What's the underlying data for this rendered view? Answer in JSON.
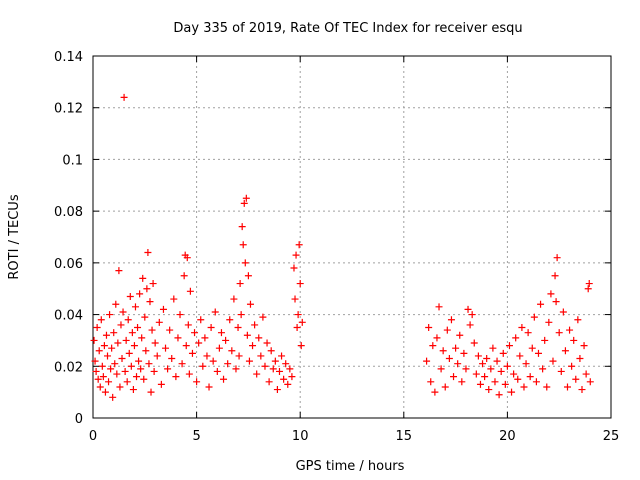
{
  "chart_data": {
    "type": "scatter",
    "title": "Day 335 of 2019, Rate Of TEC Index for receiver esqu",
    "xlabel": "GPS time / hours",
    "ylabel": "ROTI / TECUs",
    "xlim": [
      0,
      25
    ],
    "ylim": [
      0,
      0.14
    ],
    "xticks": [
      0,
      5,
      10,
      15,
      20,
      25
    ],
    "xtick_labels": [
      "0",
      "5",
      "10",
      "15",
      "20",
      "25"
    ],
    "yticks": [
      0,
      0.02,
      0.04,
      0.06,
      0.08,
      0.1,
      0.12,
      0.14
    ],
    "ytick_labels": [
      "0",
      "0.02",
      "0.04",
      "0.06",
      "0.08",
      "0.1",
      "0.12",
      "0.14"
    ],
    "grid": true,
    "marker": "+",
    "color": "#ff0000",
    "series": [
      {
        "name": "ROTI",
        "points": [
          [
            0.05,
            0.03
          ],
          [
            0.1,
            0.022
          ],
          [
            0.15,
            0.018
          ],
          [
            0.2,
            0.035
          ],
          [
            0.25,
            0.015
          ],
          [
            0.3,
            0.026
          ],
          [
            0.35,
            0.012
          ],
          [
            0.4,
            0.038
          ],
          [
            0.45,
            0.02
          ],
          [
            0.5,
            0.016
          ],
          [
            0.55,
            0.028
          ],
          [
            0.6,
            0.01
          ],
          [
            0.65,
            0.032
          ],
          [
            0.7,
            0.024
          ],
          [
            0.75,
            0.014
          ],
          [
            0.8,
            0.04
          ],
          [
            0.85,
            0.019
          ],
          [
            0.9,
            0.027
          ],
          [
            0.95,
            0.008
          ],
          [
            1.0,
            0.033
          ],
          [
            1.05,
            0.021
          ],
          [
            1.1,
            0.044
          ],
          [
            1.15,
            0.017
          ],
          [
            1.2,
            0.029
          ],
          [
            1.25,
            0.057
          ],
          [
            1.3,
            0.012
          ],
          [
            1.35,
            0.036
          ],
          [
            1.4,
            0.023
          ],
          [
            1.45,
            0.041
          ],
          [
            1.5,
            0.124
          ],
          [
            1.55,
            0.018
          ],
          [
            1.6,
            0.03
          ],
          [
            1.65,
            0.014
          ],
          [
            1.7,
            0.038
          ],
          [
            1.75,
            0.025
          ],
          [
            1.8,
            0.047
          ],
          [
            1.85,
            0.02
          ],
          [
            1.9,
            0.033
          ],
          [
            1.95,
            0.011
          ],
          [
            2.0,
            0.028
          ],
          [
            2.05,
            0.043
          ],
          [
            2.1,
            0.016
          ],
          [
            2.15,
            0.035
          ],
          [
            2.2,
            0.022
          ],
          [
            2.25,
            0.048
          ],
          [
            2.3,
            0.019
          ],
          [
            2.35,
            0.031
          ],
          [
            2.4,
            0.054
          ],
          [
            2.45,
            0.015
          ],
          [
            2.5,
            0.039
          ],
          [
            2.55,
            0.026
          ],
          [
            2.6,
            0.05
          ],
          [
            2.65,
            0.064
          ],
          [
            2.7,
            0.021
          ],
          [
            2.75,
            0.045
          ],
          [
            2.8,
            0.01
          ],
          [
            2.85,
            0.034
          ],
          [
            2.9,
            0.052
          ],
          [
            2.95,
            0.018
          ],
          [
            3.0,
            0.029
          ],
          [
            3.1,
            0.024
          ],
          [
            3.2,
            0.037
          ],
          [
            3.3,
            0.013
          ],
          [
            3.4,
            0.042
          ],
          [
            3.5,
            0.027
          ],
          [
            3.6,
            0.019
          ],
          [
            3.7,
            0.034
          ],
          [
            3.8,
            0.023
          ],
          [
            3.9,
            0.046
          ],
          [
            4.0,
            0.016
          ],
          [
            4.1,
            0.031
          ],
          [
            4.2,
            0.04
          ],
          [
            4.3,
            0.021
          ],
          [
            4.4,
            0.055
          ],
          [
            4.45,
            0.063
          ],
          [
            4.5,
            0.028
          ],
          [
            4.55,
            0.062
          ],
          [
            4.6,
            0.036
          ],
          [
            4.65,
            0.017
          ],
          [
            4.7,
            0.049
          ],
          [
            4.8,
            0.025
          ],
          [
            4.9,
            0.033
          ],
          [
            5.0,
            0.014
          ],
          [
            5.1,
            0.029
          ],
          [
            5.2,
            0.038
          ],
          [
            5.3,
            0.02
          ],
          [
            5.4,
            0.031
          ],
          [
            5.5,
            0.024
          ],
          [
            5.6,
            0.012
          ],
          [
            5.7,
            0.035
          ],
          [
            5.8,
            0.022
          ],
          [
            5.9,
            0.041
          ],
          [
            6.0,
            0.018
          ],
          [
            6.1,
            0.027
          ],
          [
            6.2,
            0.033
          ],
          [
            6.3,
            0.015
          ],
          [
            6.4,
            0.03
          ],
          [
            6.5,
            0.021
          ],
          [
            6.6,
            0.038
          ],
          [
            6.7,
            0.026
          ],
          [
            6.8,
            0.046
          ],
          [
            6.9,
            0.019
          ],
          [
            7.0,
            0.035
          ],
          [
            7.05,
            0.024
          ],
          [
            7.1,
            0.052
          ],
          [
            7.15,
            0.04
          ],
          [
            7.2,
            0.074
          ],
          [
            7.25,
            0.067
          ],
          [
            7.3,
            0.083
          ],
          [
            7.35,
            0.06
          ],
          [
            7.4,
            0.085
          ],
          [
            7.45,
            0.032
          ],
          [
            7.5,
            0.055
          ],
          [
            7.55,
            0.022
          ],
          [
            7.6,
            0.044
          ],
          [
            7.7,
            0.028
          ],
          [
            7.8,
            0.036
          ],
          [
            7.9,
            0.017
          ],
          [
            8.0,
            0.031
          ],
          [
            8.1,
            0.024
          ],
          [
            8.2,
            0.039
          ],
          [
            8.3,
            0.02
          ],
          [
            8.4,
            0.029
          ],
          [
            8.5,
            0.014
          ],
          [
            8.6,
            0.026
          ],
          [
            8.7,
            0.019
          ],
          [
            8.8,
            0.022
          ],
          [
            8.9,
            0.011
          ],
          [
            9.0,
            0.018
          ],
          [
            9.1,
            0.024
          ],
          [
            9.2,
            0.015
          ],
          [
            9.3,
            0.021
          ],
          [
            9.4,
            0.013
          ],
          [
            9.5,
            0.019
          ],
          [
            9.6,
            0.016
          ],
          [
            9.7,
            0.058
          ],
          [
            9.75,
            0.046
          ],
          [
            9.8,
            0.063
          ],
          [
            9.85,
            0.035
          ],
          [
            9.9,
            0.04
          ],
          [
            9.95,
            0.067
          ],
          [
            10.0,
            0.052
          ],
          [
            10.05,
            0.028
          ],
          [
            10.1,
            0.037
          ],
          [
            16.1,
            0.022
          ],
          [
            16.2,
            0.035
          ],
          [
            16.3,
            0.014
          ],
          [
            16.4,
            0.028
          ],
          [
            16.5,
            0.01
          ],
          [
            16.6,
            0.031
          ],
          [
            16.7,
            0.043
          ],
          [
            16.8,
            0.019
          ],
          [
            16.9,
            0.026
          ],
          [
            17.0,
            0.012
          ],
          [
            17.1,
            0.034
          ],
          [
            17.2,
            0.023
          ],
          [
            17.3,
            0.038
          ],
          [
            17.4,
            0.016
          ],
          [
            17.5,
            0.027
          ],
          [
            17.6,
            0.021
          ],
          [
            17.7,
            0.032
          ],
          [
            17.8,
            0.014
          ],
          [
            17.9,
            0.025
          ],
          [
            18.0,
            0.019
          ],
          [
            18.1,
            0.042
          ],
          [
            18.2,
            0.036
          ],
          [
            18.3,
            0.04
          ],
          [
            18.4,
            0.029
          ],
          [
            18.5,
            0.017
          ],
          [
            18.6,
            0.024
          ],
          [
            18.7,
            0.013
          ],
          [
            18.8,
            0.021
          ],
          [
            18.9,
            0.016
          ],
          [
            19.0,
            0.023
          ],
          [
            19.1,
            0.011
          ],
          [
            19.2,
            0.019
          ],
          [
            19.3,
            0.027
          ],
          [
            19.4,
            0.014
          ],
          [
            19.5,
            0.022
          ],
          [
            19.6,
            0.009
          ],
          [
            19.7,
            0.018
          ],
          [
            19.8,
            0.025
          ],
          [
            19.9,
            0.013
          ],
          [
            20.0,
            0.02
          ],
          [
            20.1,
            0.028
          ],
          [
            20.2,
            0.01
          ],
          [
            20.3,
            0.017
          ],
          [
            20.4,
            0.031
          ],
          [
            20.5,
            0.015
          ],
          [
            20.6,
            0.024
          ],
          [
            20.7,
            0.035
          ],
          [
            20.8,
            0.012
          ],
          [
            20.9,
            0.021
          ],
          [
            21.0,
            0.033
          ],
          [
            21.1,
            0.016
          ],
          [
            21.2,
            0.027
          ],
          [
            21.3,
            0.039
          ],
          [
            21.4,
            0.014
          ],
          [
            21.5,
            0.025
          ],
          [
            21.6,
            0.044
          ],
          [
            21.7,
            0.019
          ],
          [
            21.8,
            0.03
          ],
          [
            21.9,
            0.012
          ],
          [
            22.0,
            0.037
          ],
          [
            22.1,
            0.048
          ],
          [
            22.2,
            0.022
          ],
          [
            22.3,
            0.055
          ],
          [
            22.35,
            0.045
          ],
          [
            22.4,
            0.062
          ],
          [
            22.5,
            0.033
          ],
          [
            22.6,
            0.018
          ],
          [
            22.7,
            0.041
          ],
          [
            22.8,
            0.026
          ],
          [
            22.9,
            0.012
          ],
          [
            23.0,
            0.034
          ],
          [
            23.1,
            0.02
          ],
          [
            23.2,
            0.03
          ],
          [
            23.3,
            0.015
          ],
          [
            23.4,
            0.038
          ],
          [
            23.5,
            0.023
          ],
          [
            23.6,
            0.011
          ],
          [
            23.7,
            0.028
          ],
          [
            23.8,
            0.017
          ],
          [
            23.9,
            0.05
          ],
          [
            23.95,
            0.052
          ],
          [
            24.0,
            0.014
          ]
        ]
      }
    ]
  }
}
